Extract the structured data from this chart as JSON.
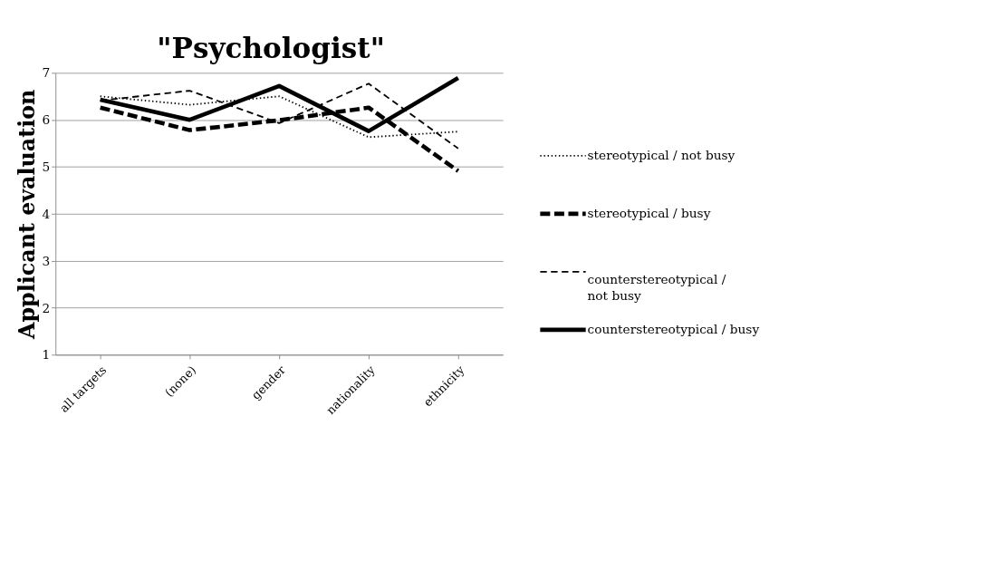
{
  "chart_data": {
    "type": "line",
    "title": "\"Psychologist\"",
    "ylabel": "Applicant evaluation",
    "categories": [
      "all targets",
      "(none)",
      "gender",
      "nationality",
      "ethnicity"
    ],
    "ylim": [
      1,
      7
    ],
    "yticks": [
      1,
      2,
      3,
      4,
      5,
      6,
      7
    ],
    "grid": "y",
    "legend": "right",
    "marker": "none",
    "series": [
      {
        "name": "stereotypical / not busy",
        "color": "#000000",
        "line_style": "dotted",
        "values": [
          6.5,
          6.32,
          6.5,
          5.63,
          5.75
        ]
      },
      {
        "name": "stereotypical / busy",
        "color": "#000000",
        "line_style": "dashed",
        "values": [
          6.26,
          5.78,
          5.99,
          6.26,
          4.91
        ]
      },
      {
        "name": "counterstereotypical / not busy",
        "color": "#000000",
        "line_style": "dashed",
        "values": [
          6.41,
          6.62,
          5.93,
          6.77,
          5.39
        ]
      },
      {
        "name": "counterstereotypical / busy",
        "color": "#000000",
        "line_style": "solid",
        "values": [
          6.43,
          6.0,
          6.72,
          5.76,
          6.89
        ]
      }
    ]
  }
}
